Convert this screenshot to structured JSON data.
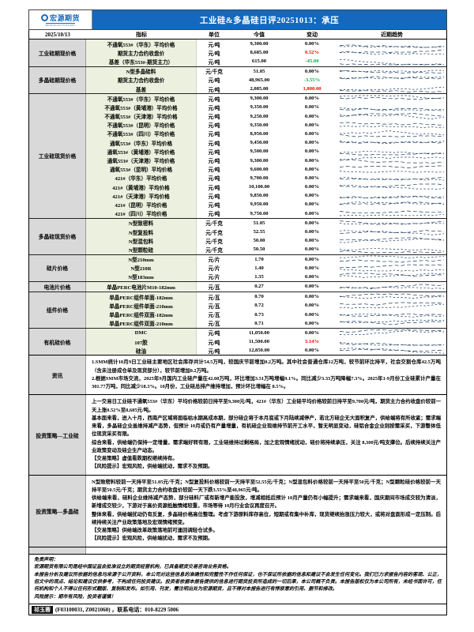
{
  "colors": {
    "header_blue": "#1469BE",
    "up_red": "#FF0000",
    "down_green": "#00B050",
    "trend_line": "#17375D",
    "group_bg": "#D9D9D9",
    "indicator_bg": "#EBF1DE"
  },
  "header": {
    "logo_text": "宏源期货",
    "logo_sub": "HONGYUAN FUTURES",
    "title": "工业硅&多晶硅日评20251013：承压"
  },
  "table": {
    "date": "2025/10/13",
    "columns": [
      "指标",
      "单位",
      "今值",
      "变动",
      "近期趋势"
    ],
    "groups": [
      {
        "label": "工业硅期现价格",
        "rows": [
          {
            "indicator": "不通氧553#（华东）平均价格",
            "unit": "元/吨",
            "value": "9,300.00",
            "change": "0.00%",
            "dir": "flat"
          },
          {
            "indicator": "期货主力合约收盘价",
            "unit": "元/吨",
            "value": "8,685.00",
            "change": "0.52%",
            "dir": "up"
          },
          {
            "indicator": "基差（华东553#-期货主力）",
            "unit": "元/吨",
            "value": "615.00",
            "change": "-45.00",
            "dir": "down"
          }
        ]
      },
      {
        "label": "多晶硅期现价格",
        "rows": [
          {
            "indicator": "N型多晶硅料",
            "unit": "元/千克",
            "value": "51.05",
            "change": "0.00%",
            "dir": "flat"
          },
          {
            "indicator": "期货主力合约收盘价",
            "unit": "元/吨",
            "value": "48,965.00",
            "change": "-3.55%",
            "dir": "down"
          },
          {
            "indicator": "基差",
            "unit": "元/吨",
            "value": "2,085.00",
            "change": "1,800.00",
            "dir": "up"
          }
        ]
      },
      {
        "label": "工业硅现货价格",
        "rows": [
          {
            "indicator": "不通氧553#（华东）平均价格",
            "unit": "元/吨",
            "value": "9,300.00",
            "change": "0.00%",
            "dir": "flat"
          },
          {
            "indicator": "不通氧553#（黄埔港）平均价格",
            "unit": "元/吨",
            "value": "9,350.00",
            "change": "0.00%",
            "dir": "flat"
          },
          {
            "indicator": "不通氧553#（天津港）平均价格",
            "unit": "元/吨",
            "value": "9,250.00",
            "change": "0.00%",
            "dir": "flat"
          },
          {
            "indicator": "不通氧553#（昆明）平均价格",
            "unit": "元/吨",
            "value": "9,350.00",
            "change": "0.00%",
            "dir": "flat"
          },
          {
            "indicator": "不通氧553#（四川）平均价格",
            "unit": "元/吨",
            "value": "8,950.00",
            "change": "0.00%",
            "dir": "flat"
          },
          {
            "indicator": "通氧553#（华东）平均价格",
            "unit": "元/吨",
            "value": "9,450.00",
            "change": "0.00%",
            "dir": "flat"
          },
          {
            "indicator": "通氧553#（黄埔港）平均价格",
            "unit": "元/吨",
            "value": "9,500.00",
            "change": "0.00%",
            "dir": "flat"
          },
          {
            "indicator": "通氧553#（天津港）平均价格",
            "unit": "元/吨",
            "value": "9,300.00",
            "change": "0.00%",
            "dir": "flat"
          },
          {
            "indicator": "通氧553#（昆明）平均价格",
            "unit": "元/吨",
            "value": "9,600.00",
            "change": "0.00%",
            "dir": "flat"
          },
          {
            "indicator": "421#（华东）平均价格",
            "unit": "元/吨",
            "value": "9,700.00",
            "change": "0.00%",
            "dir": "flat"
          },
          {
            "indicator": "421#（黄埔港）平均价格",
            "unit": "元/吨",
            "value": "10,100.00",
            "change": "0.00%",
            "dir": "flat"
          },
          {
            "indicator": "421#（天津港）平均价格",
            "unit": "元/吨",
            "value": "9,850.00",
            "change": "0.00%",
            "dir": "flat"
          },
          {
            "indicator": "421#（昆明）平均价格",
            "unit": "元/吨",
            "value": "9,950.00",
            "change": "0.00%",
            "dir": "flat"
          },
          {
            "indicator": "421#（四川）平均价格",
            "unit": "元/吨",
            "value": "9,750.00",
            "change": "0.00%",
            "dir": "flat"
          }
        ]
      },
      {
        "label": "多晶硅现货价格",
        "rows": [
          {
            "indicator": "N型致密料",
            "unit": "元/千克",
            "value": "51.05",
            "change": "0.00%",
            "dir": "flat"
          },
          {
            "indicator": "N型复投料",
            "unit": "元/千克",
            "value": "52.55",
            "change": "0.00%",
            "dir": "flat"
          },
          {
            "indicator": "N型混包料",
            "unit": "元/千克",
            "value": "50.00",
            "change": "0.00%",
            "dir": "flat"
          },
          {
            "indicator": "N型颗粒硅",
            "unit": "元/千克",
            "value": "50.50",
            "change": "0.00%",
            "dir": "flat"
          }
        ]
      },
      {
        "label": "硅片价格",
        "rows": [
          {
            "indicator": "N型210mm",
            "unit": "元/片",
            "value": "1.70",
            "change": "0.00%",
            "dir": "flat"
          },
          {
            "indicator": "N型210R",
            "unit": "元/片",
            "value": "1.40",
            "change": "0.00%",
            "dir": "flat"
          },
          {
            "indicator": "N型183mm",
            "unit": "元/片",
            "value": "1.35",
            "change": "0.00%",
            "dir": "flat"
          }
        ]
      },
      {
        "label": "电池片价格",
        "rows": [
          {
            "indicator": "单晶PERC电池片M10-182mm",
            "unit": "元/瓦",
            "value": "0.27",
            "change": "0.00%",
            "dir": "flat"
          }
        ]
      },
      {
        "label": "组件价格",
        "rows": [
          {
            "indicator": "单晶PERC组件单面-182mm",
            "unit": "元/瓦",
            "value": "0.70",
            "change": "0.00%",
            "dir": "flat"
          },
          {
            "indicator": "单晶PERC组件单面-210mm",
            "unit": "元/瓦",
            "value": "0.72",
            "change": "0.00%",
            "dir": "flat"
          },
          {
            "indicator": "单晶PERC组件双面-182mm",
            "unit": "元/瓦",
            "value": "0.73",
            "change": "0.00%",
            "dir": "flat"
          },
          {
            "indicator": "单晶PERC组件双面-210mm",
            "unit": "元/瓦",
            "value": "0.71",
            "change": "0.00%",
            "dir": "flat"
          }
        ]
      },
      {
        "label": "有机硅价格",
        "rows": [
          {
            "indicator": "DMC",
            "unit": "元/吨",
            "value": "11,050.00",
            "change": "0.00%",
            "dir": "flat"
          },
          {
            "indicator": "107胶",
            "unit": "元/吨",
            "value": "11,500.00",
            "change": "3.14%",
            "dir": "up"
          },
          {
            "indicator": "硅油",
            "unit": "元/吨",
            "value": "12,850.00",
            "change": "0.00%",
            "dir": "flat"
          }
        ]
      }
    ]
  },
  "sections": [
    {
      "label": "资讯",
      "paragraphs": [
        "1.SMM统计10月9日工业硅主要地区社会库存共计54.5万吨，较国庆节前增加0.2万吨。其中社会普通仓库12万吨，较节前环比持平，社会交割仓库42.5万吨（含未注册成仓单及现货部分），较节前增加0.2万吨。",
        "2.根据SMM市场交流，2025年9月国内工业硅产量在42.08万吨，环比增加3.51万吨增幅9.1%。同比减少3.33万吨降幅7.3%。2025年1-9月份工业硅累计产量在301.77万吨，同比减少18.3%。10月份，工业硅总排产维持增加，预计环比增幅在 8.5%。"
      ]
    },
    {
      "label": "投资策略—工业硅",
      "paragraphs": [
        "上一交易日工业硅不通氧553#（华东）平均价格较前日持平至9,300元/吨，421#（华东）工业硅平均价格较前日持平至9,700元/吨，期货主力合约收盘价较前一天上涨0.52%至8,685元/吨。",
        "基本面来看，进入十月，西南产区域将面临枯水期高成本期，部分硅企将于本月底或下月陆续减停产，若北方硅企无大面积复产，供给端将有所收紧；需求端来看，多晶硅企业虽维持减产态势，但预计 10月或仍有产量增量，有机硅企业现维持节前开工水平，暂无明显变动，硅铝合金企业则按需采买，下游整体低位现货采买有限。",
        "综合来看，供给端仍保持一定增量，需求端好转有限，工业硅维持过剩格局，加之宏观情绪扰动，硅价将持续承压，关注 8,300元/吨支撑位。后续持续关注产业政策变动及硅企生产动态。",
        "【交易策略】虚值看跌期权继续持有。",
        "【风险提示】宏观风险，供给端扰动，需求不及预期。"
      ]
    },
    {
      "label": "投资策略—多晶硅",
      "paragraphs": [
        "N型致密料较前一天持平至51.05元/千克；N型复投料价格较前一天持平至52.55元/千克；N型混包料价格较前一天持平至50元/千克；N型颗粒硅价格较前一天持平至50.5元/千克；期货主力合约收盘价较前一天下跌3.55%至48,965元/吨。",
        "供给端来看，硅料企业维持减产态势，部分硅料厂或有新增产能投放，增减相抵后预计 10月产量仍有小幅提升；需求端来看，国庆期间市场成交较为清淡，新增成交较少，下游对于高价资源抵触情绪较重，市场等待 10月行业会议再度召开。",
        "整体来看，供给端扰动仍有反复，多晶硅价格高位整理。考虑下游原料库存高位，短期或有集中补库，现货继续抬涨压力较大，或将对盘面形成一定压制。后续持续关注产业政策落地及宏观情绪预变。",
        "【交易策略】供给端改革政策落地前可逢回调轻仓试多。",
        "【风险提示】宏观风险，供给端扰动，需求不及预期。"
      ]
    }
  ],
  "disclaimer": {
    "lines": [
      "免责声明：",
      "宏源期货有限公司是经中国证监会批准设立的期货经营机构，已具备期货交易咨询业务资格。",
      "本报告分析及建议所依据的信息均来源于公开资料，本公司对这些信息的准确性和完整性不作任何保证，也不保证所依据的信息和建议不会发生任何变化。我们已力求报告内容的客观、公正，但文中的观点、结论和建议仅供参考，不构成任何投资建议。投资者依据本报告提供的信息进行期货投资所造成的一切后果，本公司概不负责。本报告版权仅为本公司所有，未经书面许可，任何机构和个人不得以任何形式翻版、复制和发布。如引用、刊发，需注明出处为宏源期货，且不得对本报告进行有悖原意的引用、删节和修改。",
      "风险提示：期市有风险，投资者谨慎！"
    ]
  },
  "footer": {
    "analyst_name": "祁玉蓉",
    "analyst_info": "(F03100031, Z0021060) ，联系电话：010-8229 5006"
  }
}
